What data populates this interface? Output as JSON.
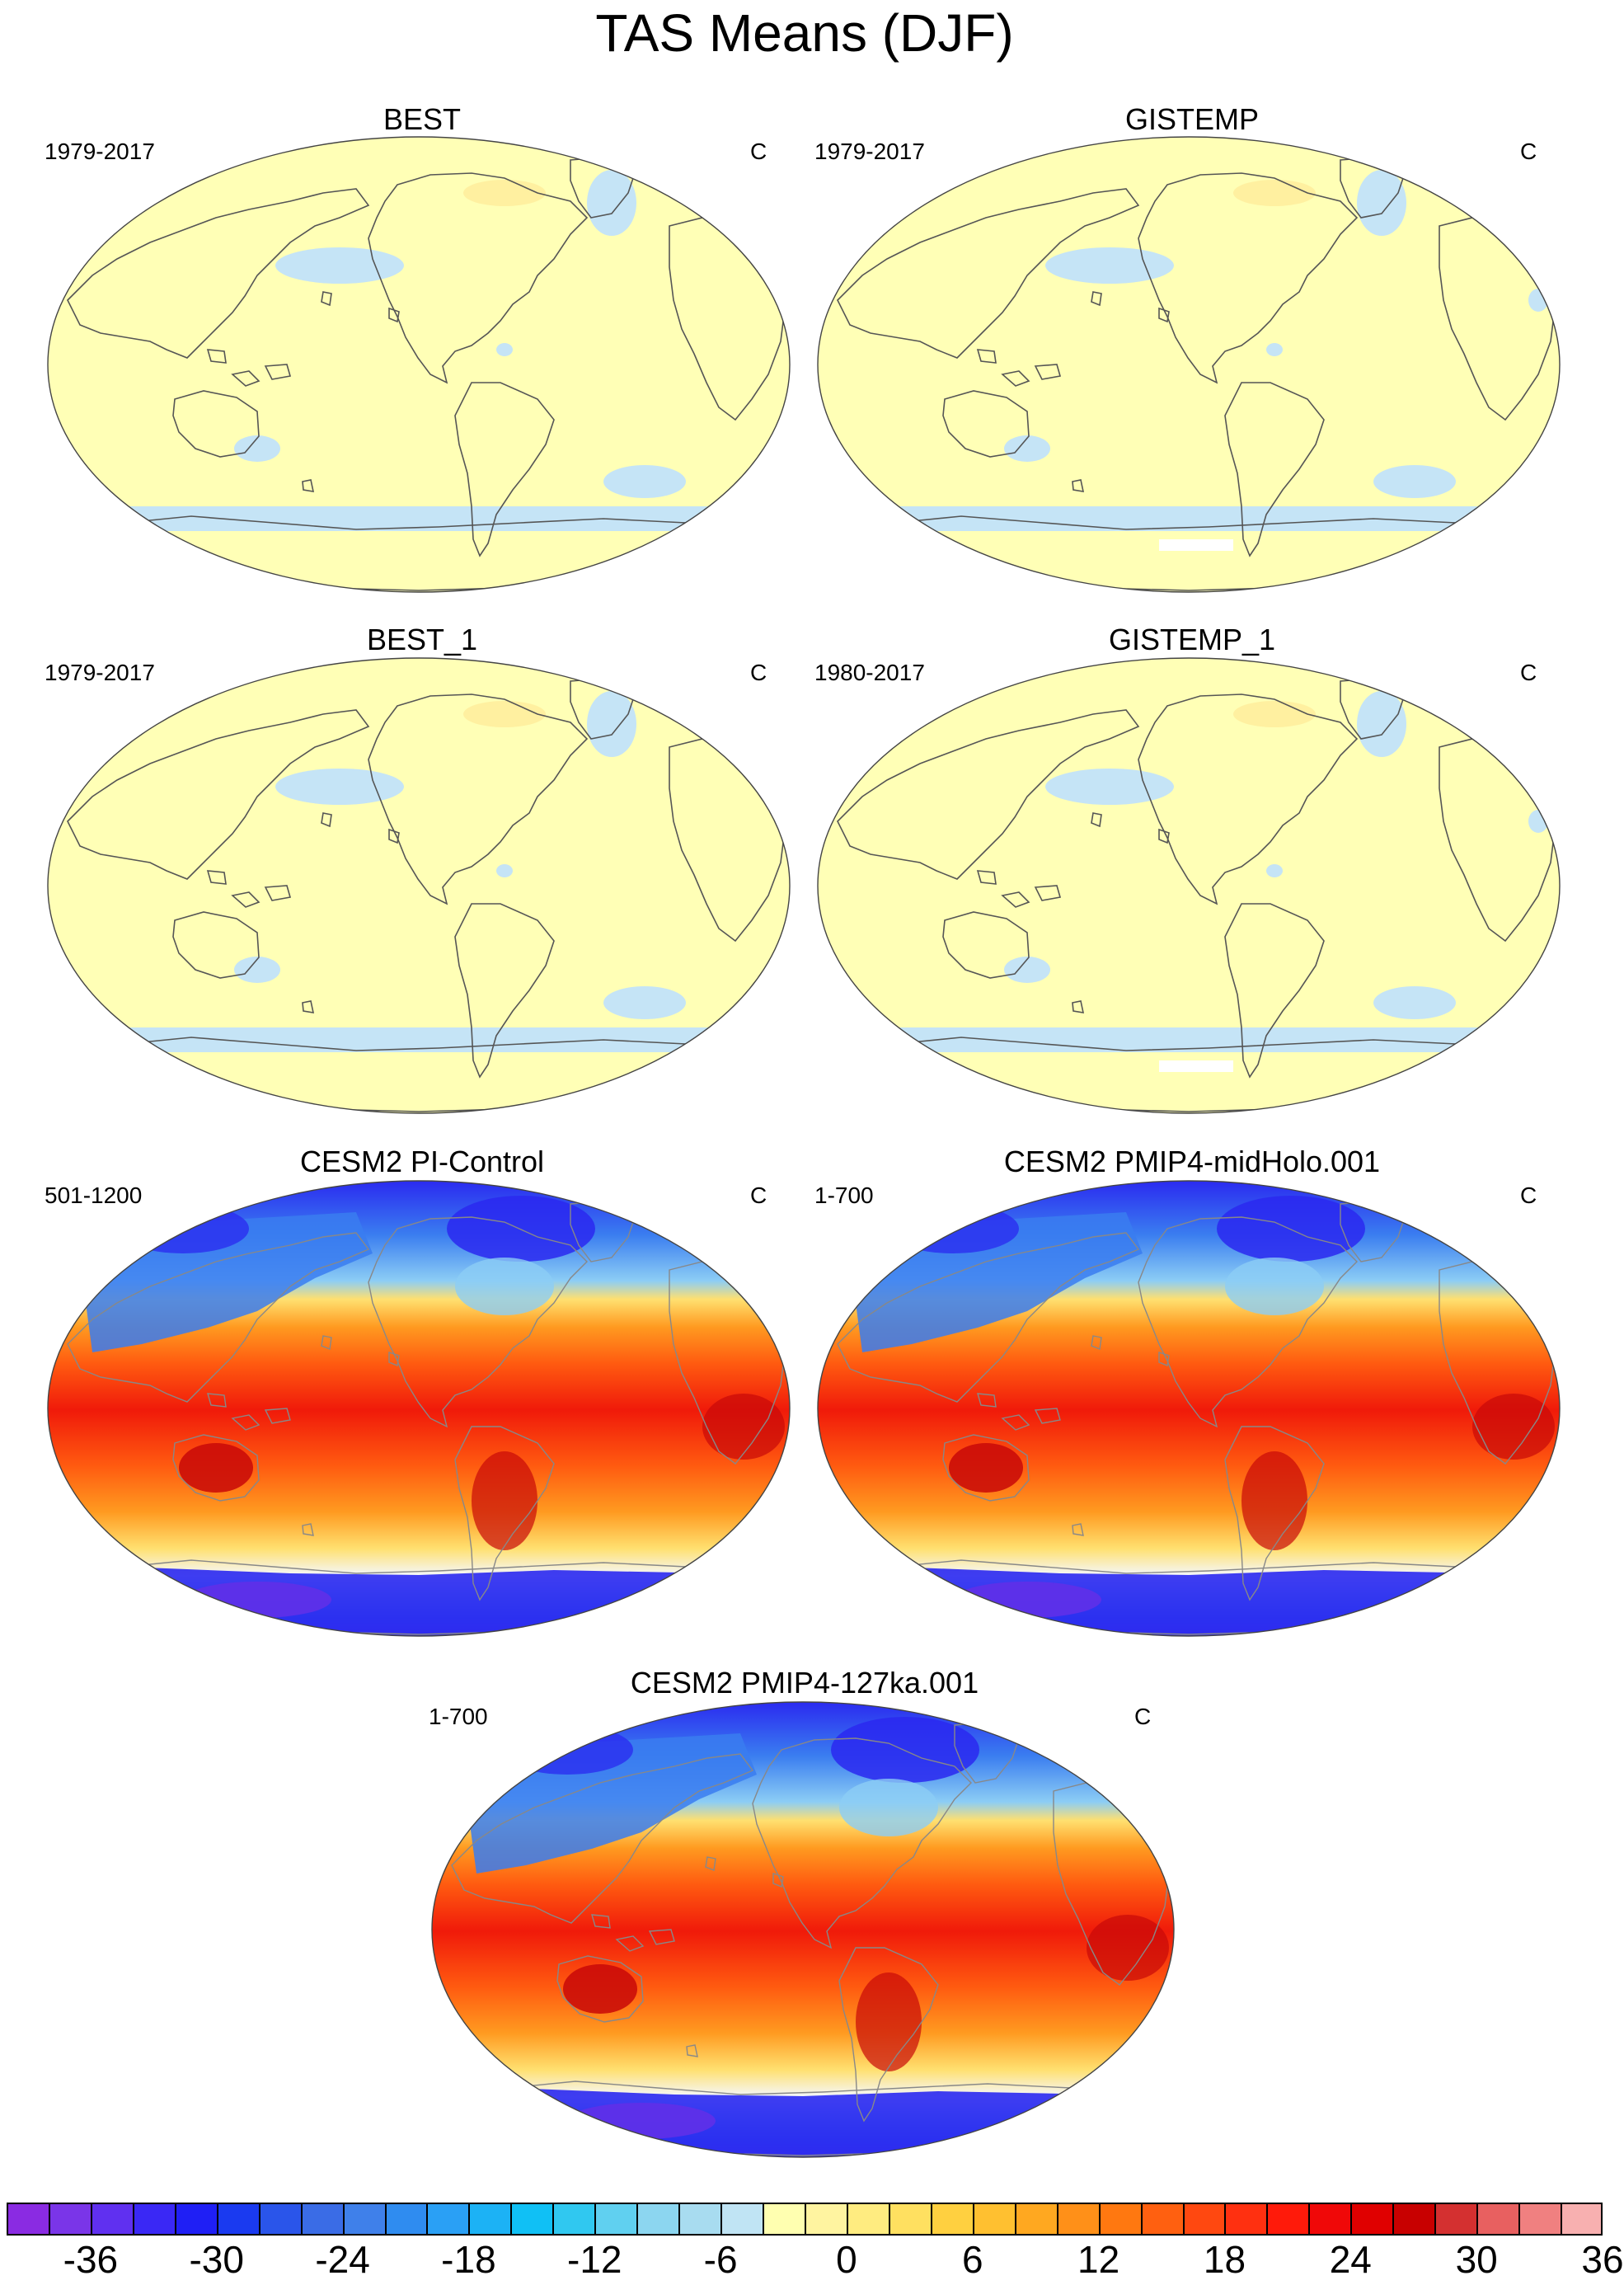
{
  "title": "TAS Means (DJF)",
  "panels": [
    {
      "name": "BEST",
      "period": "1979-2017",
      "units": "C",
      "kind": "obs"
    },
    {
      "name": "GISTEMP",
      "period": "1979-2017",
      "units": "C",
      "kind": "obs"
    },
    {
      "name": "BEST_1",
      "period": "1979-2017",
      "units": "C",
      "kind": "obs"
    },
    {
      "name": "GISTEMP_1",
      "period": "1980-2017",
      "units": "C",
      "kind": "obs"
    },
    {
      "name": "CESM2 PI-Control",
      "period": "501-1200",
      "units": "C",
      "kind": "model"
    },
    {
      "name": "CESM2 PMIP4-midHolo.001",
      "period": "1-700",
      "units": "C",
      "kind": "model"
    },
    {
      "name": "CESM2 PMIP4-127ka.001",
      "period": "1-700",
      "units": "C",
      "kind": "model"
    }
  ],
  "colorbar": {
    "tick_labels": [
      "-36",
      "-30",
      "-24",
      "-18",
      "-12",
      "-6",
      "0",
      "6",
      "12",
      "18",
      "24",
      "30",
      "36"
    ],
    "colors": [
      "#8a2be2",
      "#7a35e8",
      "#6030f0",
      "#3a28f5",
      "#1f1ff5",
      "#1a3af0",
      "#2a55ea",
      "#3a6ce6",
      "#3f80ea",
      "#2f8cf0",
      "#2aa0f5",
      "#1cb2f5",
      "#10c0f5",
      "#30c8f0",
      "#60d0f0",
      "#8cd6f0",
      "#a8dcf0",
      "#c0e4f4",
      "#ffffb0",
      "#fff4a0",
      "#ffec80",
      "#ffe060",
      "#ffd040",
      "#ffc030",
      "#ffa820",
      "#ff9018",
      "#ff7810",
      "#ff6010",
      "#ff4810",
      "#ff3010",
      "#ff1a0a",
      "#f00808",
      "#e00000",
      "#c80000",
      "#d43030",
      "#e86060",
      "#f08080",
      "#f8b0b0"
    ],
    "palette": {
      "obs_land": "#ffffb6",
      "obs_cold": "#c5e4f6",
      "obs_warm": "#fff0a0",
      "coast": "#555555",
      "deep_blue": "#2a28f0",
      "mid_blue": "#3a7df0",
      "light_blue": "#8ccdf5",
      "white_band": "#f4f8ff",
      "yellow": "#ffe070",
      "orange": "#ff9a20",
      "red_orange": "#ff5a10",
      "red": "#f01a0a",
      "dark_red": "#c80808",
      "purple": "#6030e8"
    }
  }
}
